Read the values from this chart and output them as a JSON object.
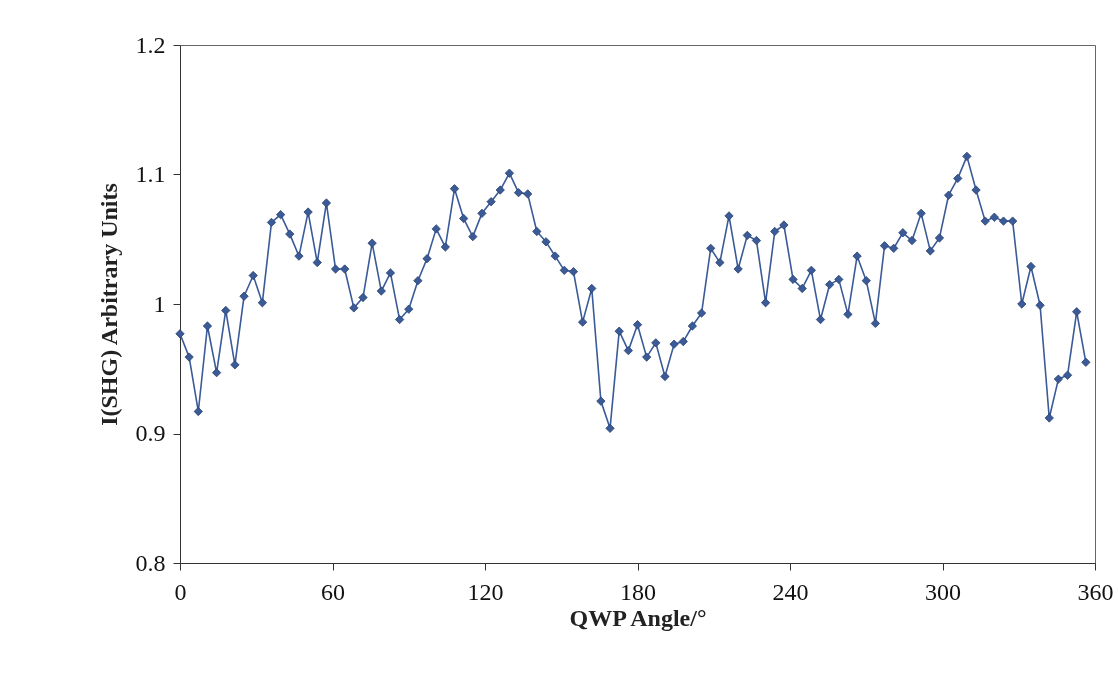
{
  "chart_data": {
    "type": "line",
    "xlabel": "QWP Angle/°",
    "ylabel": "I(SHG) Arbitrary Units",
    "x": [
      0,
      3.6,
      7.2,
      10.8,
      14.4,
      18,
      21.6,
      25.2,
      28.8,
      32.4,
      36,
      39.6,
      43.2,
      46.8,
      50.4,
      54,
      57.6,
      61.2,
      64.8,
      68.4,
      72,
      75.6,
      79.2,
      82.8,
      86.4,
      90,
      93.6,
      97.2,
      100.8,
      104.4,
      108,
      111.6,
      115.2,
      118.8,
      122.4,
      126,
      129.6,
      133.2,
      136.8,
      140.4,
      144,
      147.6,
      151.2,
      154.8,
      158.4,
      162,
      165.6,
      169.2,
      172.8,
      176.4,
      180,
      183.6,
      187.2,
      190.8,
      194.4,
      198,
      201.6,
      205.2,
      208.8,
      212.4,
      216,
      219.6,
      223.2,
      226.8,
      230.4,
      234,
      237.6,
      241.2,
      244.8,
      248.4,
      252,
      255.6,
      259.2,
      262.8,
      266.4,
      270,
      273.6,
      277.2,
      280.8,
      284.4,
      288,
      291.6,
      295.2,
      298.8,
      302.4,
      306,
      309.6,
      313.2,
      316.8,
      320.4,
      324,
      327.6,
      331.2,
      334.8,
      338.4,
      342,
      345.6,
      349.2,
      352.8,
      356.4
    ],
    "series": [
      {
        "color": "#3a5a98",
        "values": [
          0.977,
          0.959,
          0.917,
          0.983,
          0.947,
          0.995,
          0.953,
          1.006,
          1.022,
          1.001,
          1.063,
          1.069,
          1.054,
          1.037,
          1.071,
          1.032,
          1.078,
          1.027,
          1.027,
          0.997,
          1.005,
          1.047,
          1.01,
          1.024,
          0.988,
          0.996,
          1.018,
          1.035,
          1.058,
          1.044,
          1.089,
          1.066,
          1.052,
          1.07,
          1.079,
          1.088,
          1.101,
          1.086,
          1.085,
          1.056,
          1.048,
          1.037,
          1.026,
          1.025,
          0.986,
          1.012,
          0.925,
          0.904,
          0.979,
          0.964,
          0.984,
          0.959,
          0.97,
          0.944,
          0.969,
          0.971,
          0.983,
          0.993,
          1.043,
          1.032,
          1.068,
          1.027,
          1.053,
          1.049,
          1.001,
          1.056,
          1.061,
          1.019,
          1.012,
          1.026,
          0.988,
          1.015,
          1.019,
          0.992,
          1.037,
          1.018,
          0.985,
          1.045,
          1.043,
          1.055,
          1.049,
          1.07,
          1.041,
          1.051,
          1.084,
          1.097,
          1.114,
          1.088,
          1.064,
          1.067,
          1.064,
          1.064,
          1.0,
          1.029,
          0.999,
          0.912,
          0.942,
          0.945,
          0.994,
          0.955
        ]
      }
    ],
    "xlim": [
      0,
      360
    ],
    "xticks": [
      0,
      60,
      120,
      180,
      240,
      300,
      360
    ],
    "ylim": [
      0.8,
      1.2
    ],
    "yticks": [
      0.8,
      0.9,
      1,
      1.1,
      1.2
    ],
    "grid": false,
    "legend": false,
    "marker": "diamond",
    "line_style": "solid"
  }
}
